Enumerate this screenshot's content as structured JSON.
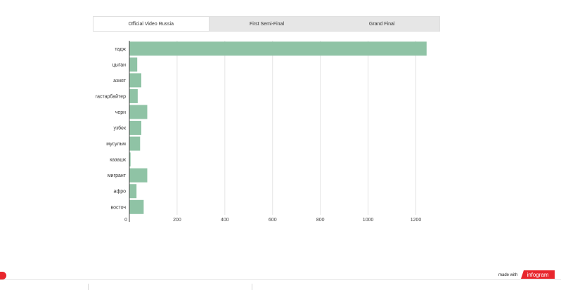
{
  "tabs": [
    {
      "label": "Official Video Russia",
      "active": true
    },
    {
      "label": "First Semi-Final",
      "active": false
    },
    {
      "label": "Grand Final",
      "active": false
    }
  ],
  "chart_data": {
    "type": "bar",
    "orientation": "horizontal",
    "categories": [
      "тадж",
      "цыган",
      "азият",
      "гастарбайтер",
      "черн",
      "узбек",
      "мусульм",
      "казашк",
      "мигрант",
      "афро",
      "восточ"
    ],
    "values": [
      1245,
      33,
      50,
      35,
      75,
      50,
      45,
      5,
      75,
      30,
      60
    ],
    "xlim": [
      0,
      1300
    ],
    "xticks": [
      0,
      200,
      400,
      600,
      800,
      1000,
      1200
    ],
    "grid": true,
    "bar_color": "#8fc3a5"
  },
  "footer": {
    "made_with": "made with",
    "brand": "infogram",
    "brand_color": "#e8262d"
  }
}
